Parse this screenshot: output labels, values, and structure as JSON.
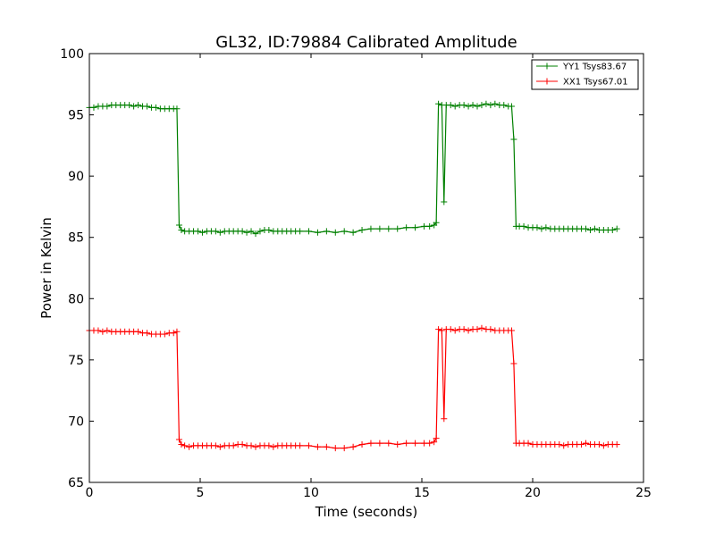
{
  "chart_data": {
    "type": "line",
    "title": "GL32, ID:79884 Calibrated Amplitude",
    "xlabel": "Time (seconds)",
    "ylabel": "Power in Kelvin",
    "xlim": [
      0,
      25
    ],
    "ylim": [
      65,
      100
    ],
    "xticks": [
      0,
      5,
      10,
      15,
      20,
      25
    ],
    "yticks": [
      65,
      70,
      75,
      80,
      85,
      90,
      95,
      100
    ],
    "xtick_labels": [
      "0",
      "5",
      "10",
      "15",
      "20",
      "25"
    ],
    "ytick_labels": [
      "65",
      "70",
      "75",
      "80",
      "85",
      "90",
      "95",
      "100"
    ],
    "grid": false,
    "legend_position": "top-right",
    "markers": "plus",
    "series": [
      {
        "name": "YY1 Tsys83.67",
        "color": "#008000",
        "points": [
          [
            0.0,
            95.6
          ],
          [
            0.2,
            95.6
          ],
          [
            0.4,
            95.7
          ],
          [
            0.6,
            95.7
          ],
          [
            0.8,
            95.7
          ],
          [
            1.0,
            95.8
          ],
          [
            1.2,
            95.8
          ],
          [
            1.4,
            95.8
          ],
          [
            1.6,
            95.8
          ],
          [
            1.8,
            95.8
          ],
          [
            2.0,
            95.7
          ],
          [
            2.2,
            95.8
          ],
          [
            2.4,
            95.7
          ],
          [
            2.6,
            95.7
          ],
          [
            2.8,
            95.6
          ],
          [
            3.0,
            95.6
          ],
          [
            3.2,
            95.5
          ],
          [
            3.4,
            95.5
          ],
          [
            3.6,
            95.5
          ],
          [
            3.8,
            95.5
          ],
          [
            3.95,
            95.5
          ],
          [
            4.05,
            86.0
          ],
          [
            4.15,
            85.6
          ],
          [
            4.3,
            85.5
          ],
          [
            4.5,
            85.5
          ],
          [
            4.7,
            85.5
          ],
          [
            4.9,
            85.5
          ],
          [
            5.1,
            85.4
          ],
          [
            5.3,
            85.5
          ],
          [
            5.5,
            85.5
          ],
          [
            5.7,
            85.5
          ],
          [
            5.9,
            85.4
          ],
          [
            6.1,
            85.5
          ],
          [
            6.3,
            85.5
          ],
          [
            6.5,
            85.5
          ],
          [
            6.7,
            85.5
          ],
          [
            6.9,
            85.5
          ],
          [
            7.1,
            85.4
          ],
          [
            7.3,
            85.5
          ],
          [
            7.5,
            85.3
          ],
          [
            7.7,
            85.5
          ],
          [
            7.9,
            85.6
          ],
          [
            8.1,
            85.6
          ],
          [
            8.3,
            85.5
          ],
          [
            8.5,
            85.5
          ],
          [
            8.7,
            85.5
          ],
          [
            8.9,
            85.5
          ],
          [
            9.1,
            85.5
          ],
          [
            9.3,
            85.5
          ],
          [
            9.5,
            85.5
          ],
          [
            9.9,
            85.5
          ],
          [
            10.3,
            85.4
          ],
          [
            10.7,
            85.5
          ],
          [
            11.1,
            85.4
          ],
          [
            11.5,
            85.5
          ],
          [
            11.9,
            85.4
          ],
          [
            12.3,
            85.6
          ],
          [
            12.7,
            85.7
          ],
          [
            13.1,
            85.7
          ],
          [
            13.5,
            85.7
          ],
          [
            13.9,
            85.7
          ],
          [
            14.3,
            85.8
          ],
          [
            14.7,
            85.8
          ],
          [
            15.1,
            85.9
          ],
          [
            15.35,
            85.9
          ],
          [
            15.55,
            86.0
          ],
          [
            15.65,
            86.2
          ],
          [
            15.75,
            95.9
          ],
          [
            15.9,
            95.8
          ],
          [
            16.0,
            87.9
          ],
          [
            16.1,
            95.8
          ],
          [
            16.3,
            95.8
          ],
          [
            16.5,
            95.7
          ],
          [
            16.7,
            95.8
          ],
          [
            16.9,
            95.8
          ],
          [
            17.1,
            95.7
          ],
          [
            17.3,
            95.8
          ],
          [
            17.5,
            95.7
          ],
          [
            17.7,
            95.8
          ],
          [
            17.9,
            95.9
          ],
          [
            18.1,
            95.8
          ],
          [
            18.3,
            95.9
          ],
          [
            18.5,
            95.8
          ],
          [
            18.7,
            95.8
          ],
          [
            18.9,
            95.7
          ],
          [
            19.05,
            95.7
          ],
          [
            19.15,
            93.0
          ],
          [
            19.25,
            85.9
          ],
          [
            19.4,
            85.9
          ],
          [
            19.6,
            85.9
          ],
          [
            19.8,
            85.8
          ],
          [
            20.0,
            85.8
          ],
          [
            20.2,
            85.8
          ],
          [
            20.4,
            85.7
          ],
          [
            20.6,
            85.8
          ],
          [
            20.8,
            85.7
          ],
          [
            21.0,
            85.7
          ],
          [
            21.2,
            85.7
          ],
          [
            21.4,
            85.7
          ],
          [
            21.6,
            85.7
          ],
          [
            21.8,
            85.7
          ],
          [
            22.0,
            85.7
          ],
          [
            22.2,
            85.7
          ],
          [
            22.4,
            85.7
          ],
          [
            22.6,
            85.6
          ],
          [
            22.8,
            85.7
          ],
          [
            23.0,
            85.6
          ],
          [
            23.2,
            85.6
          ],
          [
            23.4,
            85.6
          ],
          [
            23.6,
            85.6
          ],
          [
            23.8,
            85.7
          ]
        ]
      },
      {
        "name": "XX1 Tsys67.01",
        "color": "#ff0000",
        "points": [
          [
            0.0,
            77.4
          ],
          [
            0.2,
            77.4
          ],
          [
            0.4,
            77.4
          ],
          [
            0.6,
            77.3
          ],
          [
            0.8,
            77.4
          ],
          [
            1.0,
            77.3
          ],
          [
            1.2,
            77.3
          ],
          [
            1.4,
            77.3
          ],
          [
            1.6,
            77.3
          ],
          [
            1.8,
            77.3
          ],
          [
            2.0,
            77.3
          ],
          [
            2.2,
            77.3
          ],
          [
            2.4,
            77.2
          ],
          [
            2.6,
            77.2
          ],
          [
            2.8,
            77.1
          ],
          [
            3.0,
            77.1
          ],
          [
            3.2,
            77.1
          ],
          [
            3.4,
            77.1
          ],
          [
            3.6,
            77.2
          ],
          [
            3.8,
            77.2
          ],
          [
            3.95,
            77.3
          ],
          [
            4.05,
            68.5
          ],
          [
            4.15,
            68.1
          ],
          [
            4.3,
            68.0
          ],
          [
            4.5,
            67.9
          ],
          [
            4.7,
            68.0
          ],
          [
            4.9,
            68.0
          ],
          [
            5.1,
            68.0
          ],
          [
            5.3,
            68.0
          ],
          [
            5.5,
            68.0
          ],
          [
            5.7,
            68.0
          ],
          [
            5.9,
            67.9
          ],
          [
            6.1,
            68.0
          ],
          [
            6.3,
            68.0
          ],
          [
            6.5,
            68.0
          ],
          [
            6.7,
            68.1
          ],
          [
            6.9,
            68.1
          ],
          [
            7.1,
            68.0
          ],
          [
            7.3,
            68.0
          ],
          [
            7.5,
            67.9
          ],
          [
            7.7,
            68.0
          ],
          [
            7.9,
            68.0
          ],
          [
            8.1,
            68.0
          ],
          [
            8.3,
            67.9
          ],
          [
            8.5,
            68.0
          ],
          [
            8.7,
            68.0
          ],
          [
            8.9,
            68.0
          ],
          [
            9.1,
            68.0
          ],
          [
            9.3,
            68.0
          ],
          [
            9.5,
            68.0
          ],
          [
            9.9,
            68.0
          ],
          [
            10.3,
            67.9
          ],
          [
            10.7,
            67.9
          ],
          [
            11.1,
            67.8
          ],
          [
            11.5,
            67.8
          ],
          [
            11.9,
            67.9
          ],
          [
            12.3,
            68.1
          ],
          [
            12.7,
            68.2
          ],
          [
            13.1,
            68.2
          ],
          [
            13.5,
            68.2
          ],
          [
            13.9,
            68.1
          ],
          [
            14.3,
            68.2
          ],
          [
            14.7,
            68.2
          ],
          [
            15.1,
            68.2
          ],
          [
            15.35,
            68.2
          ],
          [
            15.55,
            68.3
          ],
          [
            15.65,
            68.6
          ],
          [
            15.75,
            77.5
          ],
          [
            15.9,
            77.4
          ],
          [
            16.0,
            70.2
          ],
          [
            16.1,
            77.5
          ],
          [
            16.3,
            77.5
          ],
          [
            16.5,
            77.4
          ],
          [
            16.7,
            77.5
          ],
          [
            16.9,
            77.5
          ],
          [
            17.1,
            77.4
          ],
          [
            17.3,
            77.5
          ],
          [
            17.5,
            77.5
          ],
          [
            17.7,
            77.6
          ],
          [
            17.9,
            77.5
          ],
          [
            18.1,
            77.5
          ],
          [
            18.3,
            77.4
          ],
          [
            18.5,
            77.4
          ],
          [
            18.7,
            77.4
          ],
          [
            18.9,
            77.4
          ],
          [
            19.05,
            77.4
          ],
          [
            19.15,
            74.7
          ],
          [
            19.25,
            68.2
          ],
          [
            19.4,
            68.2
          ],
          [
            19.6,
            68.2
          ],
          [
            19.8,
            68.2
          ],
          [
            20.0,
            68.1
          ],
          [
            20.2,
            68.1
          ],
          [
            20.4,
            68.1
          ],
          [
            20.6,
            68.1
          ],
          [
            20.8,
            68.1
          ],
          [
            21.0,
            68.1
          ],
          [
            21.2,
            68.1
          ],
          [
            21.4,
            68.0
          ],
          [
            21.6,
            68.1
          ],
          [
            21.8,
            68.1
          ],
          [
            22.0,
            68.1
          ],
          [
            22.2,
            68.1
          ],
          [
            22.4,
            68.2
          ],
          [
            22.6,
            68.1
          ],
          [
            22.8,
            68.1
          ],
          [
            23.0,
            68.1
          ],
          [
            23.2,
            68.0
          ],
          [
            23.4,
            68.1
          ],
          [
            23.6,
            68.1
          ],
          [
            23.8,
            68.1
          ]
        ]
      }
    ]
  }
}
